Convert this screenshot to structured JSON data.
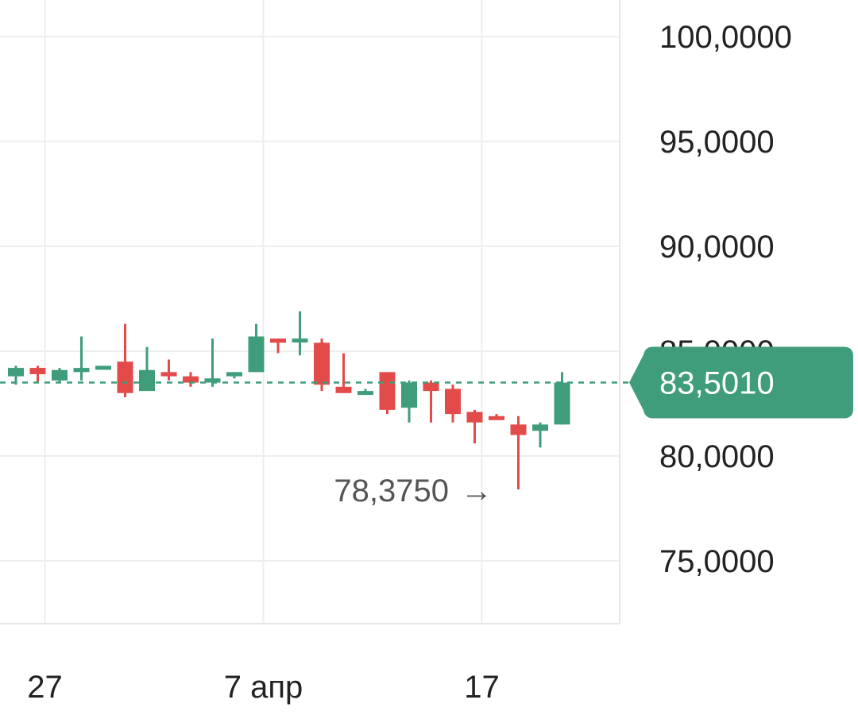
{
  "chart_data": {
    "type": "candlestick",
    "x_axis": {
      "tick_labels": [
        {
          "label": "27",
          "index": 1
        },
        {
          "label": "7 апр",
          "index": 11
        },
        {
          "label": "17",
          "index": 21
        }
      ]
    },
    "y_axis": {
      "min": 72.0,
      "max": 101.75,
      "ticks": [
        100,
        95,
        90,
        85,
        80,
        75
      ],
      "tick_labels": [
        "100,0000",
        "95,0000",
        "90,0000",
        "85,0000",
        "80,0000",
        "75,0000"
      ]
    },
    "candles": [
      {
        "o": 83.8,
        "h": 84.3,
        "l": 83.4,
        "c": 84.2
      },
      {
        "o": 84.2,
        "h": 84.3,
        "l": 83.5,
        "c": 83.9
      },
      {
        "o": 83.6,
        "h": 84.2,
        "l": 83.5,
        "c": 84.1
      },
      {
        "o": 84.0,
        "h": 85.7,
        "l": 83.6,
        "c": 84.2
      },
      {
        "o": 84.3,
        "h": 84.3,
        "l": 84.2,
        "c": 84.3
      },
      {
        "o": 84.5,
        "h": 86.3,
        "l": 82.8,
        "c": 83.0
      },
      {
        "o": 83.1,
        "h": 85.2,
        "l": 83.1,
        "c": 84.1
      },
      {
        "o": 84.0,
        "h": 84.6,
        "l": 83.6,
        "c": 83.8
      },
      {
        "o": 83.8,
        "h": 84.0,
        "l": 83.3,
        "c": 83.5
      },
      {
        "o": 83.5,
        "h": 85.6,
        "l": 83.3,
        "c": 83.7
      },
      {
        "o": 83.8,
        "h": 84.0,
        "l": 83.7,
        "c": 84.0
      },
      {
        "o": 84.0,
        "h": 86.3,
        "l": 84.0,
        "c": 85.7
      },
      {
        "o": 85.6,
        "h": 85.6,
        "l": 84.9,
        "c": 85.4
      },
      {
        "o": 85.5,
        "h": 86.9,
        "l": 84.8,
        "c": 85.6
      },
      {
        "o": 85.4,
        "h": 85.6,
        "l": 83.1,
        "c": 83.4
      },
      {
        "o": 83.3,
        "h": 84.9,
        "l": 83.0,
        "c": 83.0
      },
      {
        "o": 83.1,
        "h": 83.2,
        "l": 83.0,
        "c": 83.1
      },
      {
        "o": 84.0,
        "h": 84.0,
        "l": 82.0,
        "c": 82.2
      },
      {
        "o": 82.3,
        "h": 83.6,
        "l": 81.6,
        "c": 83.5
      },
      {
        "o": 83.5,
        "h": 83.6,
        "l": 81.6,
        "c": 83.1
      },
      {
        "o": 83.2,
        "h": 83.4,
        "l": 81.6,
        "c": 82.0
      },
      {
        "o": 82.1,
        "h": 82.2,
        "l": 80.6,
        "c": 81.6
      },
      {
        "o": 81.9,
        "h": 82.0,
        "l": 81.8,
        "c": 81.8
      },
      {
        "o": 81.5,
        "h": 81.9,
        "l": 78.4,
        "c": 81.0
      },
      {
        "o": 81.2,
        "h": 81.6,
        "l": 80.4,
        "c": 81.5
      },
      {
        "o": 81.5,
        "h": 84.0,
        "l": 81.5,
        "c": 83.5
      }
    ],
    "current_price": {
      "value": 83.501,
      "label": "83,5010"
    },
    "min_marker": {
      "value": 78.375,
      "label": "78,3750",
      "arrow": "→",
      "candle_index": 23
    },
    "grid": true,
    "colors": {
      "up": "#3f9d7b",
      "down": "#e34a4a",
      "doji": "#666666",
      "badge": "#3f9d7b",
      "grid": "#eeeeee"
    }
  }
}
